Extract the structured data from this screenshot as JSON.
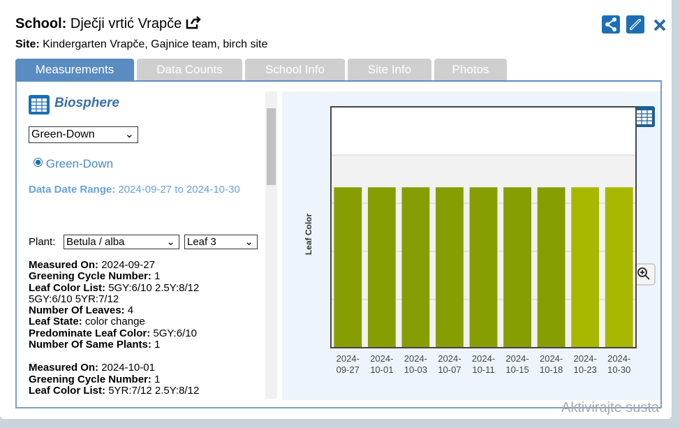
{
  "header": {
    "school_label": "School:",
    "school_name": "Dječji vrtić Vrapče",
    "site_label": "Site:",
    "site_name": "Kindergarten Vrapče, Gajnice team, birch site"
  },
  "tabs": [
    "Measurements",
    "Data Counts",
    "School Info",
    "Site Info",
    "Photos"
  ],
  "panel": {
    "title": "Biosphere",
    "protocol_select": "Green-Down",
    "radio": "Green-Down",
    "date_range_label": "Data Date Range:",
    "date_range": "2024-09-27 to 2024-10-30",
    "plant_label": "Plant:",
    "plant": "Betula / alba",
    "leaf": "Leaf 3"
  },
  "measurements": [
    [
      [
        "Measured On:",
        "2024-09-27"
      ],
      [
        "Greening Cycle Number:",
        "1"
      ],
      [
        "Leaf Color List:",
        "5GY:6/10 2.5Y:8/12 5GY:6/10 5YR:7/12"
      ],
      [
        "Number Of Leaves:",
        "4"
      ],
      [
        "Leaf State:",
        "color change"
      ],
      [
        "Predominate Leaf Color:",
        "5GY:6/10"
      ],
      [
        "Number Of Same Plants:",
        "1"
      ]
    ],
    [
      [
        "Measured On:",
        "2024-10-01"
      ],
      [
        "Greening Cycle Number:",
        "1"
      ],
      [
        "Leaf Color List:",
        "5YR:7/12 2.5Y:8/12"
      ]
    ]
  ],
  "chart_data": {
    "type": "bar",
    "y_label": "Leaf Color",
    "categories": [
      "2024-09-27",
      "2024-10-01",
      "2024-10-03",
      "2024-10-07",
      "2024-10-11",
      "2024-10-15",
      "2024-10-18",
      "2024-10-23",
      "2024-10-30"
    ],
    "values": [
      3.33,
      3.33,
      3.33,
      3.33,
      3.33,
      3.33,
      3.33,
      3.33,
      3.33
    ],
    "colors": [
      "#879e03",
      "#879e03",
      "#879e03",
      "#879e03",
      "#879e03",
      "#879e03",
      "#879e03",
      "#a8b800",
      "#a8b800"
    ],
    "ylim": [
      0,
      5
    ],
    "ygrid": [
      1,
      2,
      3,
      4
    ]
  },
  "overlay_text": "Aktivirajte susta"
}
